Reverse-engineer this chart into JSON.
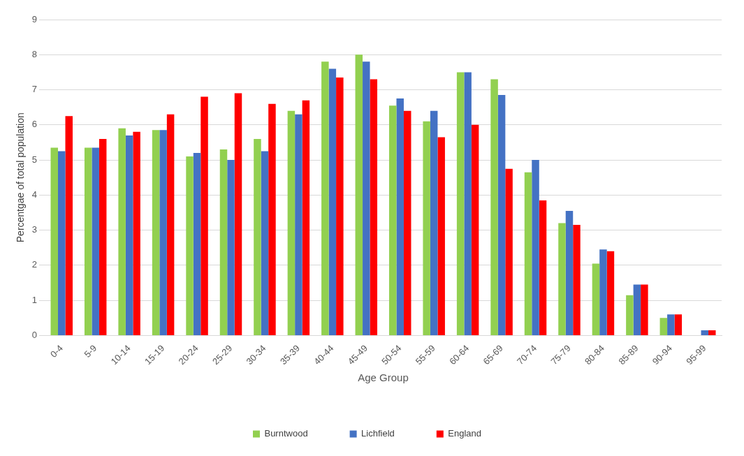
{
  "chart_data": {
    "type": "bar",
    "xlabel": "Age Group",
    "ylabel": "Percentgae of total population",
    "categories": [
      "0-4",
      "5-9",
      "10-14",
      "15-19",
      "20-24",
      "25-29",
      "30-34",
      "35-39",
      "40-44",
      "45-49",
      "50-54",
      "55-59",
      "60-64",
      "65-69",
      "70-74",
      "75-79",
      "80-84",
      "85-89",
      "90-94",
      "95-99"
    ],
    "series": [
      {
        "name": "Burntwood",
        "color": "#92d050",
        "values": [
          5.35,
          5.35,
          5.9,
          5.85,
          5.1,
          5.3,
          5.6,
          6.4,
          7.8,
          8.0,
          6.55,
          6.1,
          7.5,
          7.3,
          4.65,
          3.2,
          2.05,
          1.15,
          0.5,
          0.0
        ]
      },
      {
        "name": "Lichfield",
        "color": "#4472c4",
        "values": [
          5.25,
          5.35,
          5.7,
          5.85,
          5.2,
          5.0,
          5.25,
          6.3,
          7.6,
          7.8,
          6.75,
          6.4,
          7.5,
          6.85,
          5.0,
          3.55,
          2.45,
          1.45,
          0.6,
          0.15
        ]
      },
      {
        "name": "England",
        "color": "#ff0000",
        "values": [
          6.25,
          5.6,
          5.8,
          6.3,
          6.8,
          6.9,
          6.6,
          6.7,
          7.35,
          7.3,
          6.4,
          5.65,
          6.0,
          4.75,
          3.85,
          3.15,
          2.4,
          1.45,
          0.6,
          0.15
        ]
      }
    ],
    "ylim": [
      0,
      9
    ],
    "yticks": [
      0,
      1,
      2,
      3,
      4,
      5,
      6,
      7,
      8,
      9
    ],
    "grid": "y",
    "legend": "bottom"
  }
}
